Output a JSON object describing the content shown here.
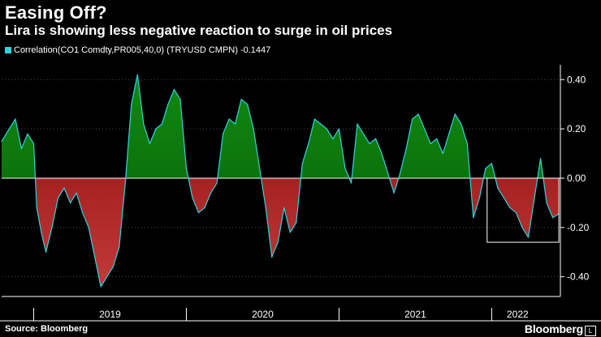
{
  "header": {
    "title": "Easing Off?",
    "subtitle": "Lira is showing less negative reaction to surge in oil prices"
  },
  "legend": {
    "label": "Correlation(CO1 Comdty,PR005,40,0) (TRYUSD CMPN) -0.1447",
    "color": "#2fd3e0"
  },
  "footer": {
    "source": "Source: Bloomberg",
    "brand": "Bloomberg",
    "brand_mark": "L"
  },
  "colors": {
    "positive_fill_top": "#0f8a0f",
    "positive_fill_bottom": "#0a5a0a",
    "negative_fill_top": "#8a0a0a",
    "negative_fill_bottom": "#c23a3a",
    "line": "#2fd3e0",
    "zero_line": "#ffffff",
    "grid": "#4a4a4a"
  },
  "chart_data": {
    "type": "area",
    "title": "Easing Off?",
    "series_name": "Correlation(CO1 Comdty,PR005,40,0) (TRYUSD CMPN)",
    "last_value": -0.1447,
    "ylim": [
      -0.48,
      0.46
    ],
    "y_ticks": [
      0.4,
      0.2,
      0.0,
      -0.2,
      -0.4
    ],
    "y_tick_labels": [
      "0.40",
      "0.20",
      "0.00",
      "-0.20",
      "-0.40"
    ],
    "x_range": [
      2018.79,
      2022.45
    ],
    "year_labels": [
      {
        "label": "2019",
        "x": 2019.5
      },
      {
        "label": "2020",
        "x": 2020.5
      },
      {
        "label": "2021",
        "x": 2021.5
      },
      {
        "label": "2022",
        "x": 2022.17
      }
    ],
    "year_dividers": [
      2019.0,
      2020.0,
      2021.0,
      2022.0
    ],
    "highlight_box": {
      "x0": 2021.97,
      "x1": 2022.44,
      "y0": 0.0,
      "y1": -0.26
    },
    "x": [
      2018.79,
      2018.84,
      2018.88,
      2018.92,
      2018.96,
      2019.0,
      2019.02,
      2019.05,
      2019.08,
      2019.12,
      2019.16,
      2019.2,
      2019.24,
      2019.28,
      2019.32,
      2019.36,
      2019.4,
      2019.44,
      2019.48,
      2019.52,
      2019.56,
      2019.6,
      2019.64,
      2019.68,
      2019.72,
      2019.76,
      2019.8,
      2019.84,
      2019.88,
      2019.92,
      2019.96,
      2020.0,
      2020.04,
      2020.08,
      2020.12,
      2020.16,
      2020.2,
      2020.24,
      2020.28,
      2020.32,
      2020.36,
      2020.4,
      2020.44,
      2020.48,
      2020.52,
      2020.56,
      2020.6,
      2020.64,
      2020.68,
      2020.72,
      2020.76,
      2020.8,
      2020.84,
      2020.88,
      2020.92,
      2020.96,
      2021.0,
      2021.04,
      2021.08,
      2021.12,
      2021.16,
      2021.2,
      2021.24,
      2021.28,
      2021.32,
      2021.36,
      2021.4,
      2021.44,
      2021.48,
      2021.52,
      2021.56,
      2021.6,
      2021.64,
      2021.68,
      2021.72,
      2021.76,
      2021.8,
      2021.84,
      2021.88,
      2021.92,
      2021.96,
      2022.0,
      2022.04,
      2022.08,
      2022.12,
      2022.16,
      2022.2,
      2022.24,
      2022.28,
      2022.32,
      2022.36,
      2022.4,
      2022.44
    ],
    "values": [
      0.15,
      0.2,
      0.24,
      0.12,
      0.18,
      0.14,
      -0.12,
      -0.22,
      -0.3,
      -0.2,
      -0.08,
      -0.04,
      -0.1,
      -0.06,
      -0.14,
      -0.2,
      -0.32,
      -0.44,
      -0.4,
      -0.36,
      -0.28,
      -0.02,
      0.3,
      0.42,
      0.22,
      0.14,
      0.2,
      0.22,
      0.3,
      0.36,
      0.32,
      0.04,
      -0.08,
      -0.14,
      -0.12,
      -0.06,
      -0.02,
      0.18,
      0.24,
      0.22,
      0.32,
      0.3,
      0.2,
      0.04,
      -0.12,
      -0.32,
      -0.26,
      -0.12,
      -0.22,
      -0.18,
      0.06,
      0.14,
      0.24,
      0.22,
      0.2,
      0.16,
      0.2,
      0.04,
      -0.02,
      0.22,
      0.18,
      0.14,
      0.16,
      0.1,
      0.02,
      -0.06,
      0.02,
      0.12,
      0.24,
      0.26,
      0.2,
      0.14,
      0.16,
      0.1,
      0.18,
      0.26,
      0.22,
      0.14,
      -0.16,
      -0.08,
      0.04,
      0.06,
      -0.04,
      -0.08,
      -0.12,
      -0.14,
      -0.2,
      -0.24,
      -0.08,
      0.08,
      -0.1,
      -0.16,
      -0.1447
    ]
  }
}
